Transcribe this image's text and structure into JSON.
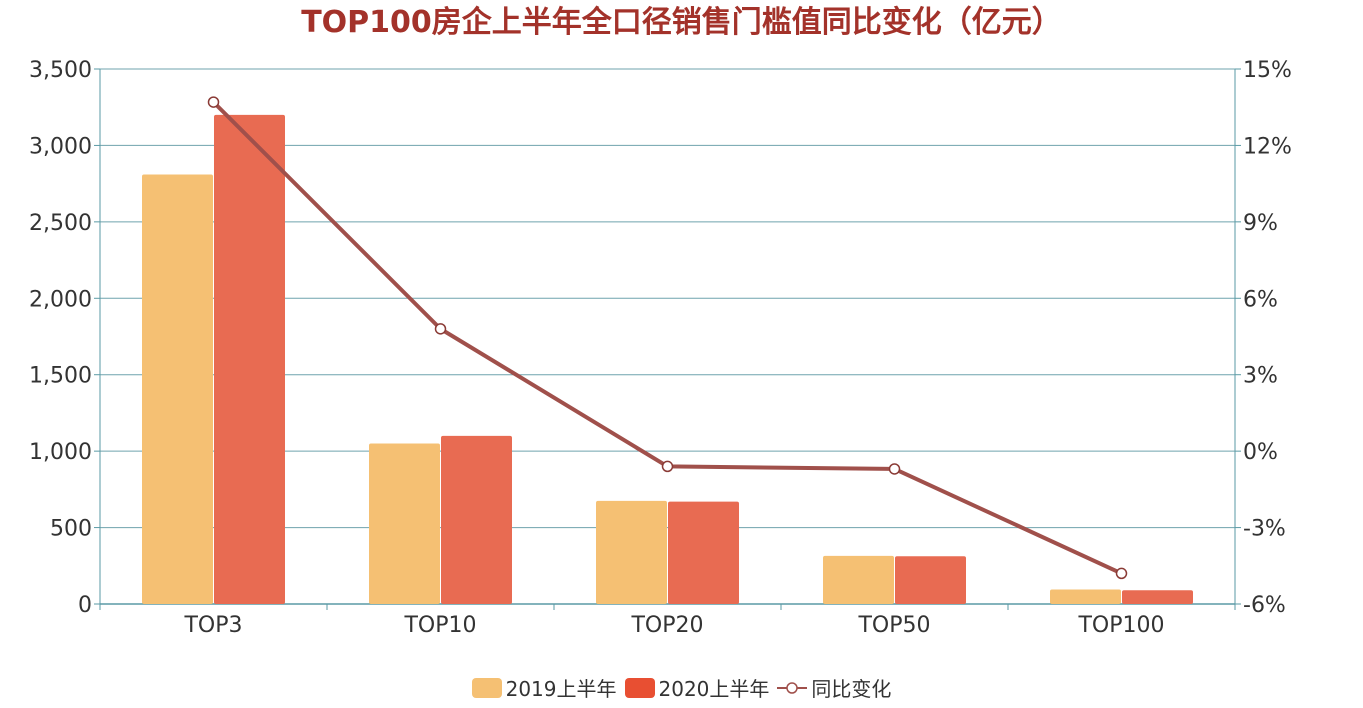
{
  "chart_data": {
    "type": "bar",
    "title": "TOP100房企上半年全口径销售门槛值同比变化（亿元）",
    "categories": [
      "TOP3",
      "TOP10",
      "TOP20",
      "TOP50",
      "TOP100"
    ],
    "series": [
      {
        "name": "2019上半年",
        "type": "bar",
        "axis": "left",
        "color": "#f5c073",
        "values": [
          2810,
          1050,
          675,
          315,
          95
        ]
      },
      {
        "name": "2020上半年",
        "type": "bar",
        "axis": "left",
        "color": "#e86b52",
        "values": [
          3200,
          1100,
          670,
          312,
          90
        ]
      },
      {
        "name": "同比变化",
        "type": "line",
        "axis": "right",
        "color": "#a0504b",
        "values": [
          13.7,
          4.8,
          -0.6,
          -0.7,
          -4.8
        ]
      }
    ],
    "y_left": {
      "range": [
        0,
        3500
      ],
      "ticks": [
        "0",
        "500",
        "1,000",
        "1,500",
        "2,000",
        "2,500",
        "3,000",
        "3,500"
      ]
    },
    "y_right": {
      "range": [
        -6,
        15
      ],
      "ticks": [
        "-6%",
        "-3%",
        "0%",
        "3%",
        "6%",
        "9%",
        "12%",
        "15%"
      ]
    },
    "grid": true,
    "legend_position": "bottom-center"
  }
}
